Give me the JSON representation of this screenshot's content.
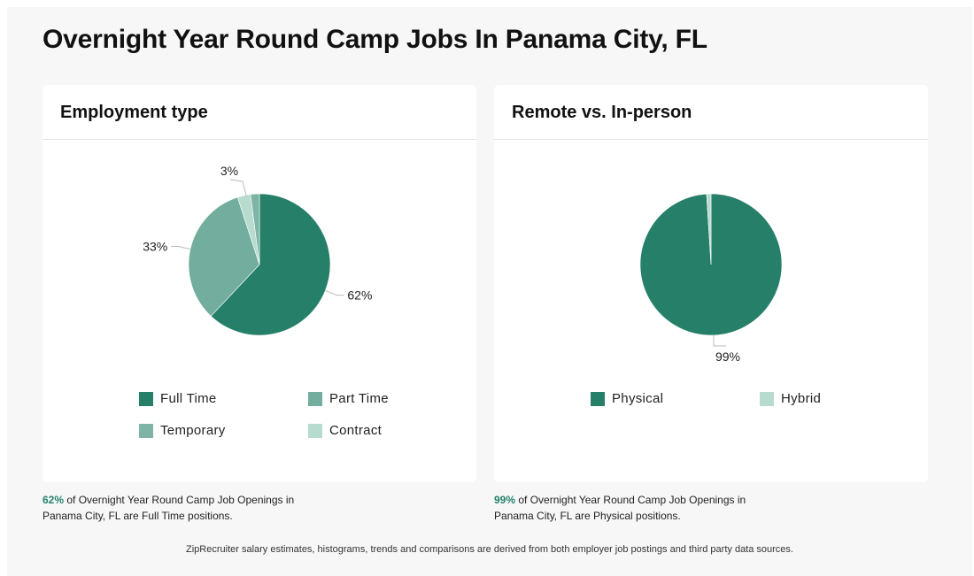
{
  "page": {
    "title": "Overnight Year Round Camp Jobs In Panama City, FL",
    "footer": "ZipRecruiter salary estimates, histograms, trends and comparisons are derived from both employer job postings and third party data sources."
  },
  "colors": {
    "full_time": "#267f69",
    "part_time": "#72ad9d",
    "temporary": "#7db4a5",
    "contract": "#b8dbd0",
    "physical": "#267f69",
    "hybrid": "#b8dbd0",
    "highlight": "#24826a"
  },
  "chart_data": [
    {
      "type": "pie",
      "title": "Employment type",
      "slices": [
        {
          "name": "Full Time",
          "value": 62,
          "label": "62%",
          "color": "#267f69"
        },
        {
          "name": "Part Time",
          "value": 33,
          "label": "33%",
          "color": "#72ad9d"
        },
        {
          "name": "Temporary",
          "value": 3,
          "label": "3%",
          "color": "#b8dbd0"
        },
        {
          "name": "Contract",
          "value": 2,
          "label": "",
          "color": "#7db4a5"
        }
      ],
      "legend": [
        {
          "name": "Full Time",
          "color": "#267f69"
        },
        {
          "name": "Part Time",
          "color": "#72ad9d"
        },
        {
          "name": "Temporary",
          "color": "#7db4a5"
        },
        {
          "name": "Contract",
          "color": "#b8dbd0"
        }
      ],
      "legend_placement": "bottom",
      "caption": {
        "highlight": "62%",
        "text": " of Overnight Year Round Camp Job Openings in Panama City, FL are Full Time positions."
      }
    },
    {
      "type": "pie",
      "title": "Remote vs. In-person",
      "slices": [
        {
          "name": "Physical",
          "value": 99,
          "label": "99%",
          "color": "#267f69"
        },
        {
          "name": "Hybrid",
          "value": 1,
          "label": "",
          "color": "#b8dbd0"
        }
      ],
      "legend": [
        {
          "name": "Physical",
          "color": "#267f69"
        },
        {
          "name": "Hybrid",
          "color": "#b8dbd0"
        }
      ],
      "legend_placement": "bottom",
      "caption": {
        "highlight": "99%",
        "text": " of Overnight Year Round Camp Job Openings in Panama City, FL are Physical positions."
      }
    }
  ]
}
